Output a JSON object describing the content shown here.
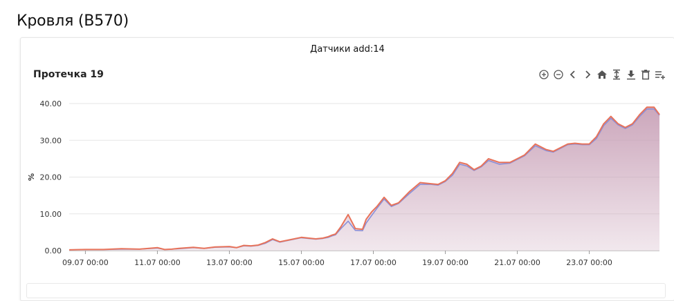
{
  "page": {
    "title": "Кровля (B570)"
  },
  "card": {
    "header": "Датчики add:14"
  },
  "toolbar": {
    "icons": [
      "zoom-in-icon",
      "zoom-out-icon",
      "pan-left-icon",
      "pan-right-icon",
      "reset-zoom-icon",
      "fit-height-icon",
      "download-icon",
      "delete-icon",
      "add-series-icon"
    ],
    "icon_color": "#555555"
  },
  "chart_data": {
    "type": "area",
    "title": "Протечка 19",
    "ylabel": "%",
    "xlabel": "",
    "ylim": [
      0,
      40
    ],
    "yticks": [
      "0.00",
      "10.00",
      "20.00",
      "30.00",
      "40.00"
    ],
    "xticks": [
      {
        "day": 9,
        "label": "09.07 00:00"
      },
      {
        "day": 11,
        "label": "11.07 00:00"
      },
      {
        "day": 13,
        "label": "13.07 00:00"
      },
      {
        "day": 15,
        "label": "15.07 00:00"
      },
      {
        "day": 17,
        "label": "17.07 00:00"
      },
      {
        "day": 19,
        "label": "19.07 00:00"
      },
      {
        "day": 21,
        "label": "21.07 00:00"
      },
      {
        "day": 23,
        "label": "23.07 00:00"
      }
    ],
    "grid": true,
    "legend": "none",
    "colors": {
      "fill": "#c9a2b8",
      "line1": "#e8735a",
      "line2": "#8a8fd8"
    },
    "series": [
      {
        "x": [
          8.55,
          9.0,
          9.5,
          10.0,
          10.5,
          11.0,
          11.2,
          11.4,
          11.6,
          12.0,
          12.3,
          12.6,
          13.0,
          13.2,
          13.4,
          13.6,
          13.8,
          14.0,
          14.2,
          14.4,
          14.6,
          15.0,
          15.4,
          15.6,
          15.75,
          15.85,
          15.95,
          16.1,
          16.3,
          16.5,
          16.7,
          16.8,
          16.95,
          17.1,
          17.3,
          17.5,
          17.7,
          18.0,
          18.3,
          18.6,
          18.8,
          19.0,
          19.2,
          19.4,
          19.6,
          19.8,
          20.0,
          20.2,
          20.5,
          20.8,
          21.0,
          21.2,
          21.5,
          21.8,
          22.0,
          22.4,
          22.6,
          22.8,
          23.0,
          23.2,
          23.4,
          23.6,
          23.8,
          24.0,
          24.2,
          24.4,
          24.6,
          24.8,
          24.95
        ],
        "y": [
          0.2,
          0.3,
          0.3,
          0.5,
          0.4,
          0.8,
          0.3,
          0.4,
          0.6,
          0.9,
          0.6,
          1.0,
          1.1,
          0.8,
          1.4,
          1.3,
          1.5,
          2.2,
          3.2,
          2.4,
          2.8,
          3.6,
          3.2,
          3.4,
          3.8,
          4.2,
          4.5,
          6.5,
          9.8,
          6.0,
          5.8,
          8.5,
          10.5,
          12.0,
          14.5,
          12.3,
          13.0,
          16.0,
          18.5,
          18.2,
          18.0,
          19.0,
          21.0,
          24.0,
          23.5,
          22.0,
          23.0,
          25.0,
          24.0,
          24.0,
          25.0,
          26.0,
          29.0,
          27.5,
          27.0,
          29.0,
          29.2,
          29.0,
          29.0,
          31.0,
          34.5,
          36.5,
          34.5,
          33.5,
          34.5,
          37.0,
          39.0,
          39.0,
          37.0
        ]
      },
      {
        "x": [
          8.55,
          9.0,
          9.5,
          10.0,
          10.5,
          11.0,
          11.2,
          11.4,
          11.6,
          12.0,
          12.3,
          12.6,
          13.0,
          13.2,
          13.4,
          13.6,
          13.8,
          14.0,
          14.2,
          14.4,
          14.6,
          15.0,
          15.4,
          15.6,
          15.75,
          15.85,
          15.95,
          16.1,
          16.3,
          16.5,
          16.7,
          16.8,
          16.95,
          17.1,
          17.3,
          17.5,
          17.7,
          18.0,
          18.3,
          18.6,
          18.8,
          19.0,
          19.2,
          19.4,
          19.6,
          19.8,
          20.0,
          20.2,
          20.5,
          20.8,
          21.0,
          21.2,
          21.5,
          21.8,
          22.0,
          22.4,
          22.6,
          22.8,
          23.0,
          23.2,
          23.4,
          23.6,
          23.8,
          24.0,
          24.2,
          24.4,
          24.6,
          24.8,
          24.95
        ],
        "y": [
          0.2,
          0.3,
          0.3,
          0.4,
          0.4,
          0.7,
          0.3,
          0.4,
          0.5,
          0.8,
          0.6,
          0.9,
          1.0,
          0.8,
          1.3,
          1.2,
          1.4,
          2.0,
          3.0,
          2.3,
          2.7,
          3.5,
          3.1,
          3.3,
          3.6,
          4.0,
          4.3,
          6.0,
          8.0,
          5.5,
          5.4,
          7.5,
          9.5,
          11.5,
          14.0,
          12.0,
          12.8,
          15.5,
          18.0,
          18.0,
          17.8,
          18.8,
          20.5,
          23.5,
          23.0,
          21.8,
          22.8,
          24.5,
          23.5,
          23.8,
          24.8,
          25.8,
          28.5,
          27.2,
          26.8,
          28.8,
          29.0,
          28.8,
          28.8,
          30.5,
          34.0,
          36.0,
          34.2,
          33.2,
          34.2,
          36.5,
          38.5,
          38.5,
          36.8
        ]
      }
    ]
  }
}
